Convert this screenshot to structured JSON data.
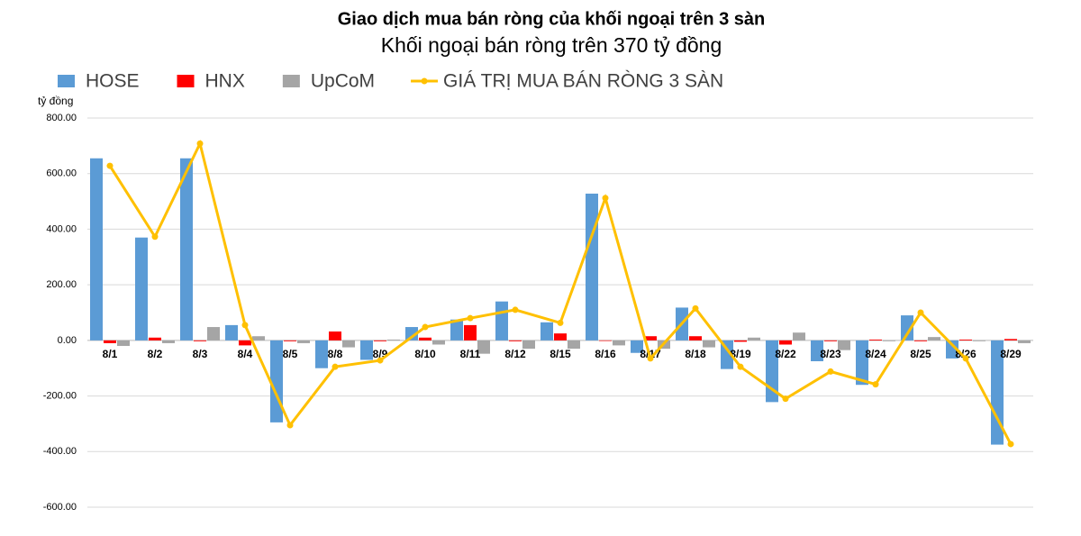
{
  "chart_data": {
    "type": "bar",
    "title": "Giao dịch mua bán ròng của khối ngoại trên 3 sàn",
    "subtitle": "Khối ngoại bán ròng trên 370 tỷ đồng",
    "y_label": "tỷ đồng",
    "categories": [
      "8/1",
      "8/2",
      "8/3",
      "8/4",
      "8/5",
      "8/8",
      "8/9",
      "8/10",
      "8/11",
      "8/12",
      "8/15",
      "8/16",
      "8/17",
      "8/18",
      "8/19",
      "8/22",
      "8/23",
      "8/24",
      "8/25",
      "8/26",
      "8/29"
    ],
    "series": [
      {
        "name": "HOSE",
        "color": "#5b9bd5",
        "type": "bar",
        "values": [
          655,
          370,
          655,
          55,
          -295,
          -100,
          -70,
          48,
          75,
          140,
          65,
          528,
          -45,
          118,
          -103,
          -222,
          -75,
          -160,
          90,
          -65,
          -375
        ]
      },
      {
        "name": "HNX",
        "color": "#ff0000",
        "type": "bar",
        "values": [
          -10,
          10,
          -3,
          -18,
          -3,
          32,
          -3,
          10,
          55,
          -3,
          25,
          -2,
          15,
          15,
          -5,
          -15,
          -3,
          3,
          -3,
          3,
          5
        ]
      },
      {
        "name": "UpCoM",
        "color": "#a5a5a5",
        "type": "bar",
        "values": [
          -20,
          -10,
          48,
          15,
          -10,
          -25,
          3,
          -15,
          -48,
          -30,
          -30,
          -18,
          -30,
          -25,
          10,
          28,
          -35,
          -3,
          12,
          -3,
          -10
        ]
      },
      {
        "name": "GIÁ TRỊ MUA BÁN RÒNG 3 SÀN",
        "color": "#ffc000",
        "type": "line",
        "values": [
          628,
          373,
          708,
          55,
          -305,
          -95,
          -72,
          48,
          80,
          110,
          63,
          512,
          -65,
          115,
          -95,
          -210,
          -112,
          -158,
          100,
          -65,
          -373
        ]
      }
    ],
    "ylim": [
      -600,
      800
    ],
    "yticks": [
      {
        "value": -600,
        "label": "-600.00"
      },
      {
        "value": -400,
        "label": "-400.00"
      },
      {
        "value": -200,
        "label": "-200.00"
      },
      {
        "value": 0,
        "label": "0.00"
      },
      {
        "value": 200,
        "label": "200.00"
      },
      {
        "value": 400,
        "label": "400.00"
      },
      {
        "value": 600,
        "label": "600.00"
      },
      {
        "value": 800,
        "label": "800.00"
      }
    ],
    "grid": true
  }
}
